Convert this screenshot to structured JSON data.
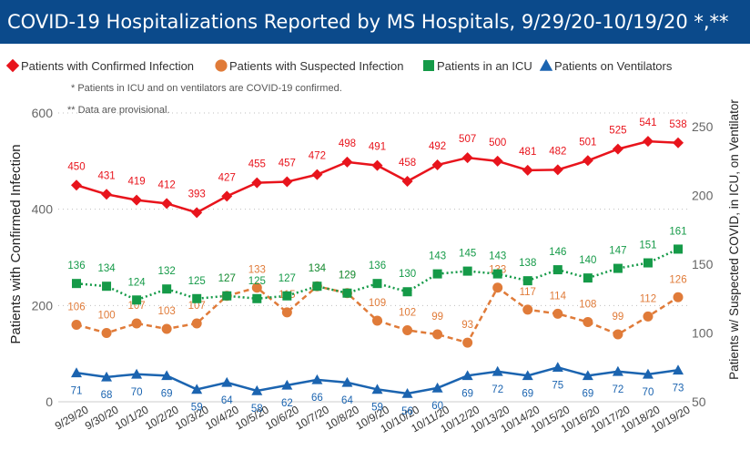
{
  "title": "COVID-19 Hospitalizations Reported by MS Hospitals, 9/29/20-10/19/20 *,**",
  "footnotes": [
    "* Patients in ICU and on ventilators are COVID-19 confirmed.",
    "** Data are provisional."
  ],
  "colors": {
    "title_bg": "#0b4a8b",
    "confirmed": "#e8141c",
    "suspected": "#e07b39",
    "icu": "#159a48",
    "ventilators": "#1b64b0",
    "grid": "#bfbfbf",
    "tick": "#666666"
  },
  "chart_data": {
    "type": "line",
    "x": [
      "9/29/20",
      "9/30/20",
      "10/1/20",
      "10/2/20",
      "10/3/20",
      "10/4/20",
      "10/5/20",
      "10/6/20",
      "10/7/20",
      "10/8/20",
      "10/9/20",
      "10/10/20",
      "10/11/20",
      "10/12/20",
      "10/13/20",
      "10/14/20",
      "10/15/20",
      "10/16/20",
      "10/17/20",
      "10/18/20",
      "10/19/20"
    ],
    "ylabel_left": "Patients with Confirmed Infection",
    "ylabel_right": "Patients w/ Suspected COVID, in ICU, on Ventilator",
    "ylim_left": [
      0,
      600
    ],
    "yticks_left": [
      0,
      200,
      400,
      600
    ],
    "ylim_right": [
      50,
      260
    ],
    "yticks_right": [
      50,
      100,
      150,
      200,
      250
    ],
    "grid": true,
    "legend_position": "top",
    "series": [
      {
        "name": "Patients with Confirmed Infection",
        "axis": "left",
        "marker": "diamond",
        "line": "solid",
        "color_key": "confirmed",
        "values": [
          450,
          431,
          419,
          412,
          393,
          427,
          455,
          457,
          472,
          498,
          491,
          458,
          492,
          507,
          500,
          481,
          482,
          501,
          525,
          541,
          538
        ]
      },
      {
        "name": "Patients with Suspected Infection",
        "axis": "right",
        "marker": "circle",
        "line": "dashed",
        "color_key": "suspected",
        "values": [
          106,
          100,
          107,
          103,
          107,
          127,
          133,
          115,
          134,
          129,
          109,
          102,
          99,
          93,
          133,
          117,
          114,
          108,
          99,
          112,
          126
        ]
      },
      {
        "name": "Patients in an ICU",
        "axis": "right",
        "marker": "square",
        "line": "dotted",
        "color_key": "icu",
        "values": [
          136,
          134,
          124,
          132,
          125,
          127,
          125,
          127,
          134,
          129,
          136,
          130,
          143,
          145,
          143,
          138,
          146,
          140,
          147,
          151,
          161
        ]
      },
      {
        "name": "Patients on Ventilators",
        "axis": "right",
        "marker": "triangle",
        "line": "solid",
        "color_key": "ventilators",
        "values": [
          71,
          68,
          70,
          69,
          59,
          64,
          58,
          62,
          66,
          64,
          59,
          56,
          60,
          69,
          72,
          69,
          75,
          69,
          72,
          70,
          73
        ]
      }
    ]
  }
}
